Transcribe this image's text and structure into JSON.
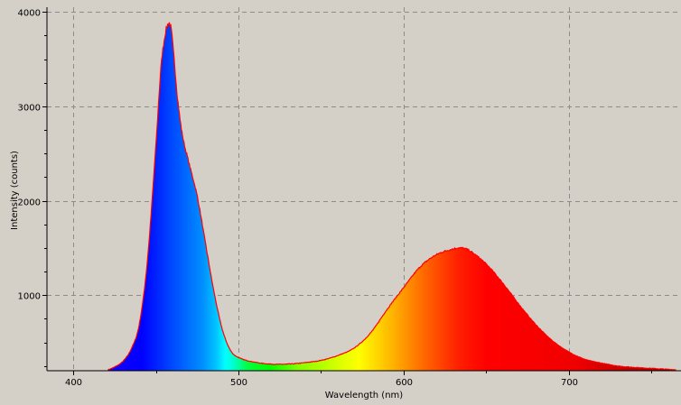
{
  "chart_data": {
    "type": "area",
    "xlabel": "Wavelength (nm)",
    "ylabel": "Intensity (counts)",
    "xlim": [
      384,
      768
    ],
    "ylim": [
      200,
      4050
    ],
    "x_ticks": [
      400,
      500,
      600,
      700
    ],
    "y_ticks": [
      1000,
      2000,
      3000,
      4000
    ],
    "grid": true,
    "fill": "visible spectrum colour gradient",
    "line_color": "#ff0000",
    "background": "#d4d0c8",
    "series": [
      {
        "x": [
          421,
          425,
          430,
          435,
          440,
          445,
          450,
          453,
          455,
          457,
          459,
          461,
          463,
          466,
          470,
          475,
          480,
          485,
          490,
          495,
          500,
          510,
          520,
          530,
          540,
          550,
          560,
          570,
          580,
          590,
          600,
          610,
          620,
          630,
          635,
          640,
          650,
          660,
          670,
          680,
          690,
          700,
          710,
          720,
          730,
          740,
          750,
          760,
          765
        ],
        "y": [
          210,
          240,
          300,
          430,
          700,
          1400,
          2600,
          3400,
          3700,
          3860,
          3840,
          3500,
          3100,
          2700,
          2400,
          2050,
          1550,
          1050,
          650,
          420,
          340,
          290,
          270,
          270,
          285,
          310,
          360,
          440,
          600,
          850,
          1080,
          1300,
          1430,
          1490,
          1500,
          1470,
          1330,
          1130,
          900,
          690,
          520,
          400,
          320,
          280,
          250,
          235,
          225,
          215,
          210
        ]
      }
    ]
  }
}
